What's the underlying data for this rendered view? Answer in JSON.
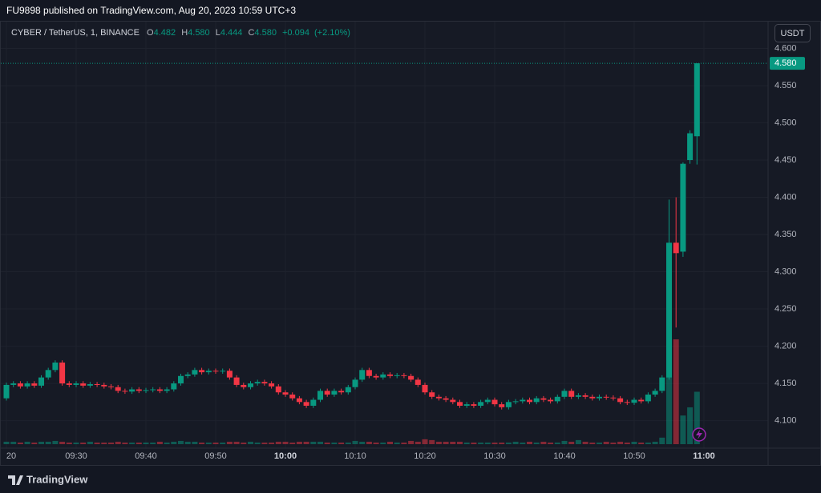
{
  "header": {
    "publisher": "FU9898 published on TradingView.com, Aug 20, 2023 10:59 UTC+3"
  },
  "footer": {
    "brand": "TradingView"
  },
  "chart_data": {
    "type": "candlestick",
    "symbol": "CYBER / TetherUS, 1, BINANCE",
    "currency_button": "USDT",
    "ohlc_legend": {
      "keys": [
        "O",
        "H",
        "L",
        "C"
      ],
      "values": [
        4.482,
        {
          "value": 4.58,
          "label": "4.580"
        },
        4.444,
        {
          "value": 4.58,
          "label": "4.580"
        }
      ]
    },
    "change": {
      "value": 0.094,
      "label": "+0.094"
    },
    "change_percent": {
      "value": 2.1,
      "label": "(+2.10%)"
    },
    "up_color": "#089981",
    "down_color": "#f23645",
    "grid": true,
    "last_price": {
      "value": 4.58,
      "label": "4.580"
    },
    "ylim": [
      4.063,
      4.636
    ],
    "yticks": [
      {
        "value": 4.1,
        "label": "4.100"
      },
      {
        "value": 4.15,
        "label": "4.150"
      },
      {
        "value": 4.2,
        "label": "4.200"
      },
      {
        "value": 4.25,
        "label": "4.250"
      },
      {
        "value": 4.3,
        "label": "4.300"
      },
      {
        "value": 4.35,
        "label": "4.350"
      },
      {
        "value": 4.4,
        "label": "4.400"
      },
      {
        "value": 4.45,
        "label": "4.450"
      },
      {
        "value": 4.5,
        "label": "4.500"
      },
      {
        "value": 4.55,
        "label": "4.550"
      },
      {
        "value": 4.6,
        "label": "4.600"
      }
    ],
    "xticks": [
      {
        "value": "09:20",
        "label": "20"
      },
      "09:30",
      "09:40",
      "09:50",
      "10:00",
      "10:10",
      "10:20",
      "10:30",
      "10:40",
      "10:50",
      "11:00"
    ],
    "categories": [
      "09:20",
      "09:21",
      "09:22",
      "09:23",
      "09:24",
      "09:25",
      "09:26",
      "09:27",
      "09:28",
      "09:29",
      "09:30",
      "09:31",
      "09:32",
      "09:33",
      "09:34",
      "09:35",
      "09:36",
      "09:37",
      "09:38",
      "09:39",
      "09:40",
      "09:41",
      "09:42",
      "09:43",
      "09:44",
      "09:45",
      "09:46",
      "09:47",
      "09:48",
      "09:49",
      "09:50",
      "09:51",
      "09:52",
      "09:53",
      "09:54",
      "09:55",
      "09:56",
      "09:57",
      "09:58",
      "09:59",
      "10:00",
      "10:01",
      "10:02",
      "10:03",
      "10:04",
      "10:05",
      "10:06",
      "10:07",
      "10:08",
      "10:09",
      "10:10",
      "10:11",
      "10:12",
      "10:13",
      "10:14",
      "10:15",
      "10:16",
      "10:17",
      "10:18",
      "10:19",
      "10:20",
      "10:21",
      "10:22",
      "10:23",
      "10:24",
      "10:25",
      "10:26",
      "10:27",
      "10:28",
      "10:29",
      "10:30",
      "10:31",
      "10:32",
      "10:33",
      "10:34",
      "10:35",
      "10:36",
      "10:37",
      "10:38",
      "10:39",
      "10:40",
      "10:41",
      "10:42",
      "10:43",
      "10:44",
      "10:45",
      "10:46",
      "10:47",
      "10:48",
      "10:49",
      "10:50",
      "10:51",
      "10:52",
      "10:53",
      "10:54",
      "10:55",
      "10:56",
      "10:57",
      "10:58",
      "10:59"
    ],
    "open": [
      4.13,
      4.148,
      4.15,
      4.146,
      4.15,
      4.147,
      4.158,
      4.168,
      4.178,
      4.15,
      4.148,
      4.15,
      4.147,
      4.149,
      4.148,
      4.146,
      4.145,
      4.14,
      4.139,
      4.142,
      4.14,
      4.141,
      4.142,
      4.14,
      4.142,
      4.15,
      4.16,
      4.162,
      4.168,
      4.165,
      4.167,
      4.166,
      4.167,
      4.158,
      4.148,
      4.145,
      4.15,
      4.152,
      4.15,
      4.146,
      4.138,
      4.135,
      4.13,
      4.125,
      4.12,
      4.128,
      4.14,
      4.135,
      4.14,
      4.138,
      4.145,
      4.155,
      4.168,
      4.16,
      4.158,
      4.162,
      4.16,
      4.161,
      4.16,
      4.155,
      4.148,
      4.138,
      4.132,
      4.13,
      4.128,
      4.125,
      4.12,
      4.122,
      4.12,
      4.125,
      4.128,
      4.122,
      4.118,
      4.125,
      4.126,
      4.128,
      4.125,
      4.13,
      4.128,
      4.126,
      4.132,
      4.14,
      4.132,
      4.134,
      4.132,
      4.13,
      4.132,
      4.131,
      4.13,
      4.125,
      4.124,
      4.128,
      4.126,
      4.135,
      4.14,
      4.158,
      4.339,
      4.327,
      4.45,
      4.482
    ],
    "high": [
      4.151,
      4.153,
      4.153,
      4.153,
      4.153,
      4.161,
      4.171,
      4.181,
      4.181,
      4.153,
      4.153,
      4.153,
      4.152,
      4.152,
      4.151,
      4.149,
      4.148,
      4.143,
      4.145,
      4.145,
      4.144,
      4.145,
      4.145,
      4.145,
      4.153,
      4.163,
      4.165,
      4.171,
      4.171,
      4.17,
      4.17,
      4.17,
      4.17,
      4.161,
      4.151,
      4.153,
      4.155,
      4.155,
      4.153,
      4.149,
      4.141,
      4.138,
      4.133,
      4.128,
      4.131,
      4.143,
      4.143,
      4.143,
      4.143,
      4.148,
      4.158,
      4.171,
      4.171,
      4.163,
      4.165,
      4.165,
      4.164,
      4.164,
      4.163,
      4.158,
      4.151,
      4.141,
      4.135,
      4.133,
      4.131,
      4.128,
      4.125,
      4.125,
      4.128,
      4.131,
      4.131,
      4.125,
      4.128,
      4.129,
      4.131,
      4.131,
      4.133,
      4.133,
      4.131,
      4.135,
      4.143,
      4.143,
      4.137,
      4.137,
      4.135,
      4.135,
      4.135,
      4.134,
      4.133,
      4.128,
      4.131,
      4.131,
      4.138,
      4.143,
      4.161,
      4.397,
      4.4,
      4.447,
      4.49,
      4.58
    ],
    "low": [
      4.127,
      4.145,
      4.143,
      4.143,
      4.144,
      4.144,
      4.155,
      4.165,
      4.147,
      4.145,
      4.145,
      4.144,
      4.144,
      4.145,
      4.143,
      4.142,
      4.137,
      4.136,
      4.136,
      4.137,
      4.137,
      4.138,
      4.137,
      4.137,
      4.139,
      4.147,
      4.157,
      4.159,
      4.162,
      4.162,
      4.163,
      4.163,
      4.155,
      4.145,
      4.142,
      4.142,
      4.147,
      4.147,
      4.143,
      4.135,
      4.132,
      4.127,
      4.122,
      4.117,
      4.117,
      4.125,
      4.132,
      4.132,
      4.135,
      4.135,
      4.142,
      4.152,
      4.157,
      4.155,
      4.155,
      4.157,
      4.157,
      4.157,
      4.152,
      4.145,
      4.135,
      4.129,
      4.127,
      4.125,
      4.122,
      4.117,
      4.117,
      4.117,
      4.117,
      4.122,
      4.119,
      4.115,
      4.115,
      4.122,
      4.123,
      4.122,
      4.122,
      4.125,
      4.123,
      4.123,
      4.129,
      4.129,
      4.129,
      4.129,
      4.127,
      4.127,
      4.128,
      4.127,
      4.122,
      4.121,
      4.121,
      4.123,
      4.123,
      4.132,
      4.137,
      4.155,
      4.225,
      4.32,
      4.445,
      4.444
    ],
    "close": [
      4.148,
      4.15,
      4.146,
      4.15,
      4.147,
      4.158,
      4.168,
      4.178,
      4.15,
      4.148,
      4.15,
      4.147,
      4.149,
      4.148,
      4.146,
      4.145,
      4.14,
      4.139,
      4.142,
      4.14,
      4.141,
      4.142,
      4.14,
      4.142,
      4.15,
      4.16,
      4.162,
      4.168,
      4.165,
      4.167,
      4.166,
      4.167,
      4.158,
      4.148,
      4.145,
      4.15,
      4.152,
      4.15,
      4.146,
      4.138,
      4.135,
      4.13,
      4.125,
      4.12,
      4.128,
      4.14,
      4.135,
      4.14,
      4.138,
      4.145,
      4.155,
      4.168,
      4.16,
      4.158,
      4.162,
      4.16,
      4.161,
      4.16,
      4.155,
      4.148,
      4.138,
      4.132,
      4.13,
      4.128,
      4.125,
      4.12,
      4.122,
      4.12,
      4.125,
      4.128,
      4.122,
      4.118,
      4.125,
      4.126,
      4.128,
      4.125,
      4.13,
      4.128,
      4.126,
      4.132,
      4.14,
      4.132,
      4.134,
      4.132,
      4.13,
      4.132,
      4.131,
      4.13,
      4.125,
      4.124,
      4.128,
      4.126,
      4.135,
      4.14,
      4.158,
      4.339,
      4.325,
      4.445,
      4.486,
      4.58
    ],
    "volume": [
      3,
      3,
      2,
      3,
      2,
      3,
      3,
      4,
      3,
      2,
      2,
      2,
      3,
      2,
      2,
      2,
      3,
      2,
      2,
      2,
      2,
      2,
      3,
      2,
      3,
      4,
      3,
      3,
      2,
      2,
      2,
      2,
      3,
      3,
      2,
      3,
      2,
      2,
      2,
      3,
      3,
      2,
      3,
      3,
      3,
      3,
      2,
      2,
      2,
      2,
      4,
      3,
      3,
      2,
      2,
      3,
      2,
      2,
      4,
      3,
      6,
      5,
      3,
      3,
      3,
      3,
      2,
      2,
      2,
      2,
      2,
      2,
      2,
      3,
      2,
      3,
      2,
      3,
      2,
      2,
      4,
      3,
      5,
      3,
      2,
      2,
      3,
      2,
      3,
      2,
      3,
      2,
      2,
      3,
      8,
      83,
      128,
      35,
      45,
      64
    ]
  }
}
